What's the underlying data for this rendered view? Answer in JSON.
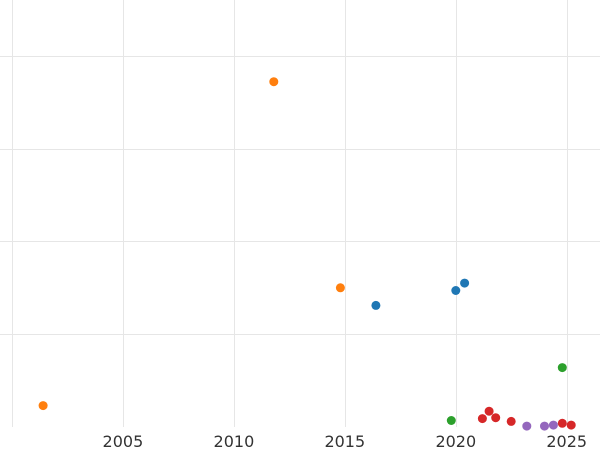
{
  "chart_data": {
    "type": "scatter",
    "xlim": [
      2000,
      2026.5
    ],
    "ylim": [
      0,
      4.6
    ],
    "grid": true,
    "x_ticks": [
      {
        "value": 2005,
        "label": "2005"
      },
      {
        "value": 2010,
        "label": "2010"
      },
      {
        "value": 2015,
        "label": "2015"
      },
      {
        "value": 2020,
        "label": "2020"
      },
      {
        "value": 2025,
        "label": "2025"
      }
    ],
    "x_gridlines": [
      2000,
      2005,
      2010,
      2015,
      2020,
      2025
    ],
    "y_gridlines": [
      1,
      2,
      3,
      4
    ],
    "series": [
      {
        "color": "#ff7f0e",
        "points": [
          {
            "x": 2001.4,
            "y": 0.23
          },
          {
            "x": 2011.8,
            "y": 3.72
          },
          {
            "x": 2014.8,
            "y": 1.5
          }
        ]
      },
      {
        "color": "#1f77b4",
        "points": [
          {
            "x": 2016.4,
            "y": 1.31
          },
          {
            "x": 2020.0,
            "y": 1.47
          },
          {
            "x": 2020.4,
            "y": 1.55
          }
        ]
      },
      {
        "color": "#2ca02c",
        "points": [
          {
            "x": 2019.8,
            "y": 0.07
          },
          {
            "x": 2024.8,
            "y": 0.64
          }
        ]
      },
      {
        "color": "#d62728",
        "points": [
          {
            "x": 2021.2,
            "y": 0.09
          },
          {
            "x": 2021.5,
            "y": 0.17
          },
          {
            "x": 2021.8,
            "y": 0.1
          },
          {
            "x": 2022.5,
            "y": 0.06
          },
          {
            "x": 2024.8,
            "y": 0.04
          },
          {
            "x": 2025.2,
            "y": 0.02
          }
        ]
      },
      {
        "color": "#9467bd",
        "points": [
          {
            "x": 2023.2,
            "y": 0.01
          },
          {
            "x": 2024.0,
            "y": 0.01
          },
          {
            "x": 2024.4,
            "y": 0.02
          }
        ]
      }
    ]
  }
}
